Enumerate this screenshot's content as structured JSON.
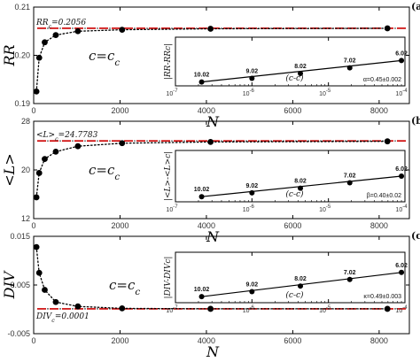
{
  "chart_data": [
    {
      "type": "scatter",
      "panel_letter": "(a)",
      "ylabel": "RR",
      "xlabel": "N",
      "condition": "c=c",
      "condition_sub": "c",
      "ref_label": "RR",
      "ref_label_sub": "c",
      "ref_label_value": "=0.2056",
      "ref_value": 0.2056,
      "xlim": [
        0,
        8700
      ],
      "ylim": [
        0.19,
        0.21
      ],
      "yticks": [
        0.19,
        0.2,
        0.21
      ],
      "ytick_labels": [
        "0.19",
        "0.20",
        "0.21"
      ],
      "xticks": [
        0,
        2000,
        4000,
        6000,
        8000
      ],
      "xtick_labels": [
        "0",
        "2000",
        "4000",
        "6000",
        "8000"
      ],
      "x": [
        64,
        128,
        256,
        512,
        1024,
        2048,
        4096,
        8192
      ],
      "y": [
        0.1925,
        0.1995,
        0.2027,
        0.2042,
        0.205,
        0.2053,
        0.2055,
        0.2056
      ],
      "inset": {
        "ylabel": "|RR-RR_c|",
        "xlabel": "(c-c_c)",
        "xtick_labels": [
          "10",
          "10",
          "10",
          "10"
        ],
        "xtick_exps": [
          "-7",
          "-6",
          "-5",
          "-4"
        ],
        "x": [
          2.2e-07,
          1e-06,
          4.3e-06,
          1.9e-05,
          9e-05
        ],
        "y": [
          0.08,
          0.155,
          0.255,
          0.37,
          0.52
        ],
        "point_labels": [
          "10.02",
          "9.02",
          "8.02",
          "7.02",
          "6.02"
        ],
        "fit_text": "α=0.45±0.002"
      }
    },
    {
      "type": "scatter",
      "panel_letter": "(b)",
      "ylabel": "<L>",
      "xlabel": "N",
      "condition": "c=c",
      "condition_sub": "c",
      "ref_label": "<L>",
      "ref_label_sub": "c",
      "ref_label_value": "=24.7783",
      "ref_value": 24.7783,
      "xlim": [
        0,
        8700
      ],
      "ylim": [
        12,
        28
      ],
      "yticks": [
        12,
        20,
        28
      ],
      "ytick_labels": [
        "12",
        "20",
        "28"
      ],
      "xticks": [
        0,
        2000,
        4000,
        6000,
        8000
      ],
      "xtick_labels": [
        "0",
        "2000",
        "4000",
        "6000",
        "8000"
      ],
      "x": [
        64,
        128,
        256,
        512,
        1024,
        2048,
        4096,
        8192
      ],
      "y": [
        15.5,
        19.5,
        21.8,
        23.0,
        23.9,
        24.4,
        24.6,
        24.7
      ],
      "inset": {
        "ylabel": "|<L>-<L>_c|",
        "xlabel": "(c-c_c)",
        "xtick_labels": [
          "10",
          "10",
          "10",
          "10"
        ],
        "xtick_exps": [
          "-7",
          "-6",
          "-5",
          "-4"
        ],
        "x": [
          2.2e-07,
          1e-06,
          4.3e-06,
          1.9e-05,
          9e-05
        ],
        "y": [
          0.1,
          0.175,
          0.265,
          0.37,
          0.5
        ],
        "point_labels": [
          "10.02",
          "9.02",
          "8.02",
          "7.02",
          "6.02"
        ],
        "fit_text": "β=0.40±0.02"
      }
    },
    {
      "type": "scatter",
      "panel_letter": "(c)",
      "ylabel": "DIV",
      "xlabel": "N",
      "condition": "c=c",
      "condition_sub": "c",
      "ref_label": "DIV",
      "ref_label_sub": "c",
      "ref_label_value": "=0.0001",
      "ref_value": 0.0001,
      "xlim": [
        0,
        8700
      ],
      "ylim": [
        -0.005,
        0.015
      ],
      "yticks": [
        -0.005,
        0.005,
        0.015
      ],
      "ytick_labels": [
        "-0.005",
        "0.005",
        "0.015"
      ],
      "xticks": [
        0,
        2000,
        4000,
        6000,
        8000
      ],
      "xtick_labels": [
        "0",
        "2000",
        "4000",
        "6000",
        "8000"
      ],
      "x": [
        64,
        128,
        256,
        512,
        1024,
        2048,
        4096,
        8192
      ],
      "y": [
        0.0128,
        0.0075,
        0.004,
        0.0015,
        0.0006,
        0.0002,
        0.0001,
        0.0001
      ],
      "inset": {
        "ylabel": "|DIV-DIV_c|",
        "xlabel": "(c-c_c)",
        "xtick_labels": [
          "10",
          "10",
          "10",
          "10"
        ],
        "xtick_exps": [
          "-7",
          "-6",
          "-5",
          "-4"
        ],
        "x": [
          2.2e-07,
          1e-06,
          4.3e-06,
          1.9e-05,
          9e-05
        ],
        "y": [
          0.12,
          0.22,
          0.33,
          0.46,
          0.6
        ],
        "point_labels": [
          "10.02",
          "9.02",
          "8.02",
          "7.02",
          "6.02"
        ],
        "fit_text": "κ=0.49±0.003"
      }
    }
  ],
  "colors": {
    "ref_line": "#cc0000",
    "ref_dash": "#000000",
    "points": "#000000"
  }
}
